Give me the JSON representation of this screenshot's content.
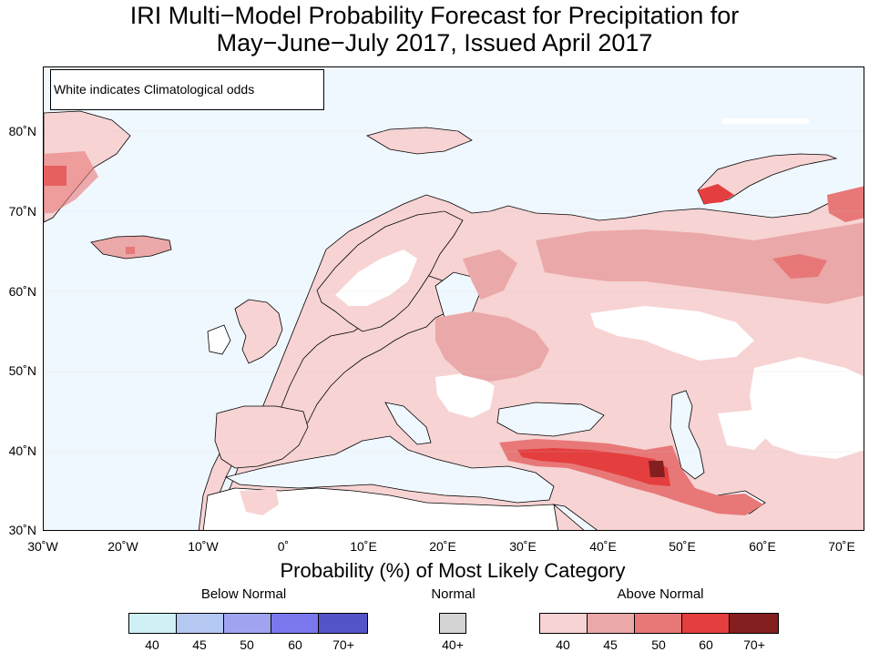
{
  "title_line1": "IRI Multi−Model Probability Forecast for Precipitation for",
  "title_line2": "May−June−July 2017, Issued April 2017",
  "note": "White indicates Climatological odds",
  "lat_labels": [
    "80˚N",
    "70˚N",
    "60˚N",
    "50˚N",
    "40˚N",
    "30˚N"
  ],
  "lon_labels": [
    "30˚W",
    "20˚W",
    "10˚W",
    "0˚",
    "10˚E",
    "20˚E",
    "30˚E",
    "40˚E",
    "50˚E",
    "60˚E",
    "70˚E"
  ],
  "legend": {
    "title": "Probability (%) of Most Likely Category",
    "below_normal": {
      "label": "Below Normal",
      "ticks": [
        "40",
        "45",
        "50",
        "60",
        "70+"
      ],
      "colors": [
        "#cff0f5",
        "#b4c8f2",
        "#a0a4f0",
        "#7b78ee",
        "#5454c8"
      ]
    },
    "normal": {
      "label": "Normal",
      "ticks": [
        "40+"
      ],
      "colors": [
        "#d4d4d4"
      ]
    },
    "above_normal": {
      "label": "Above Normal",
      "ticks": [
        "40",
        "45",
        "50",
        "60",
        "70+"
      ],
      "colors": [
        "#f7d3d3",
        "#eba8a8",
        "#e87878",
        "#e43e3e",
        "#841f1f"
      ]
    }
  },
  "colors": {
    "ocean": "#f0f8ff",
    "land_climatology": "#ffffff",
    "coastline": "#000000",
    "borders": "#9a9a9a"
  }
}
